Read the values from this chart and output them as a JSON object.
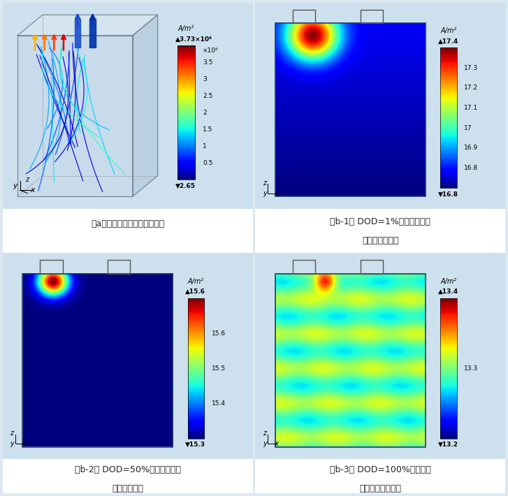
{
  "bg_color": "#cde0ed",
  "figure_bg": "#e8e8e8",
  "panel_a": {
    "label": "（a）电极集流体电流密度分布",
    "cb_unit": "A/m²",
    "cb_top": "▲3.73×10⁶",
    "cb_x106": "×10⁶",
    "cb_ticks": [
      "3.5",
      "3",
      "2.5",
      "2",
      "1.5",
      "1",
      "0.5"
    ],
    "cb_bot": "▼2.65",
    "vmin": 0.0,
    "vmax": 3.73
  },
  "panel_b1": {
    "label1": "（b-1） DOD=1%正极截面反应",
    "label2": "电流密度分布）",
    "cb_unit": "A/m²",
    "cb_top": "▲17.4",
    "cb_ticks": [
      "17.3",
      "17.2",
      "17.1",
      "17",
      "16.9",
      "16.8"
    ],
    "cb_bot": "▼16.8",
    "vmin": 16.8,
    "vmax": 17.4
  },
  "panel_b2": {
    "label1": "（b-2） DOD=50%正极截面反应",
    "label2": "电流密度分布",
    "cb_unit": "A/m²",
    "cb_top": "▲15.6",
    "cb_ticks": [
      "15.6",
      "15.5",
      "15.4"
    ],
    "cb_bot": "▼15.3",
    "vmin": 15.3,
    "vmax": 15.6
  },
  "panel_b3": {
    "label1": "（b-3） DOD=100%正极截面",
    "label2": "反应电流密度分布",
    "cb_unit": "A/m²",
    "cb_top": "▲13.4",
    "cb_ticks": [
      "13.3"
    ],
    "cb_bot": "▼13.2",
    "vmin": 13.2,
    "vmax": 13.4
  }
}
